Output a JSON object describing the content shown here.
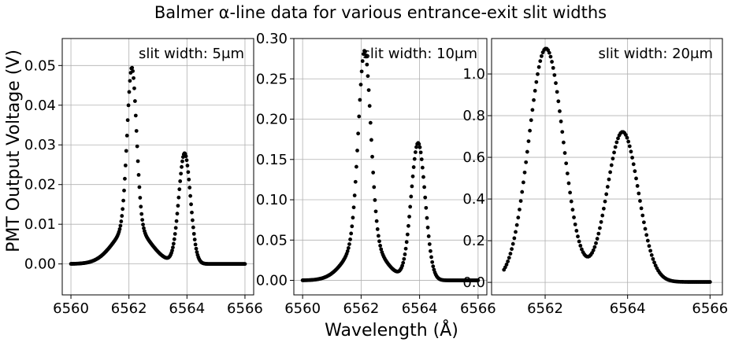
{
  "figure": {
    "suptitle": "Balmer α-line data for various entrance-exit slit widths",
    "xlabel": "Wavelength (Å)",
    "ylabel": "PMT Output Voltage (V)"
  },
  "chart_data": [
    {
      "type": "scatter",
      "annotation": "slit width: 5μm",
      "xlim": [
        6559.7,
        6566.3
      ],
      "ylim": [
        -0.0078,
        0.0568
      ],
      "x_ticks": [
        6560,
        6562,
        6564,
        6566
      ],
      "y_ticks": [
        0.0,
        0.01,
        0.02,
        0.03,
        0.04,
        0.05
      ],
      "y_tick_labels": [
        "0.00",
        "0.01",
        "0.02",
        "0.03",
        "0.04",
        "0.05"
      ],
      "grid": true,
      "x_range": [
        6560.0,
        6566.0
      ],
      "n_points": 240,
      "model": {
        "base": 0.0,
        "offset": 0.0,
        "peaks": [
          {
            "amp": 0.04,
            "center": 6562.1,
            "sigma": 0.16
          },
          {
            "amp": 0.0095,
            "center": 6562.1,
            "sigma": 0.6
          },
          {
            "amp": 0.0278,
            "center": 6563.92,
            "sigma": 0.2
          }
        ]
      }
    },
    {
      "type": "scatter",
      "annotation": "slit width: 10μm",
      "xlim": [
        6559.7,
        6566.3
      ],
      "ylim": [
        -0.018,
        0.3
      ],
      "x_ticks": [
        6560,
        6562,
        6564,
        6566
      ],
      "y_ticks": [
        0.0,
        0.05,
        0.1,
        0.15,
        0.2,
        0.25,
        0.3
      ],
      "y_tick_labels": [
        "0.00",
        "0.05",
        "0.10",
        "0.15",
        "0.20",
        "0.25",
        "0.30"
      ],
      "grid": true,
      "x_range": [
        6560.0,
        6566.0
      ],
      "n_points": 200,
      "model": {
        "base": 0.0,
        "offset": 0.0,
        "peaks": [
          {
            "amp": 0.235,
            "center": 6562.12,
            "sigma": 0.21
          },
          {
            "amp": 0.05,
            "center": 6562.12,
            "sigma": 0.6
          },
          {
            "amp": 0.17,
            "center": 6563.95,
            "sigma": 0.24
          }
        ]
      }
    },
    {
      "type": "scatter",
      "annotation": "slit width: 20μm",
      "xlim": [
        6560.7,
        6566.3
      ],
      "ylim": [
        -0.06,
        1.17
      ],
      "x_ticks": [
        6562,
        6564,
        6566
      ],
      "y_ticks": [
        0.0,
        0.2,
        0.4,
        0.6,
        0.8,
        1.0
      ],
      "y_tick_labels": [
        "0.0",
        "0.2",
        "0.4",
        "0.6",
        "0.8",
        "1.0"
      ],
      "grid": true,
      "x_range": [
        6561.0,
        6566.0
      ],
      "n_points": 160,
      "model": {
        "base": 0.0,
        "offset": 0.002,
        "peaks": [
          {
            "amp": 1.12,
            "center": 6562.02,
            "sigma": 0.42
          },
          {
            "amp": 0.72,
            "center": 6563.88,
            "sigma": 0.38
          }
        ]
      }
    }
  ]
}
